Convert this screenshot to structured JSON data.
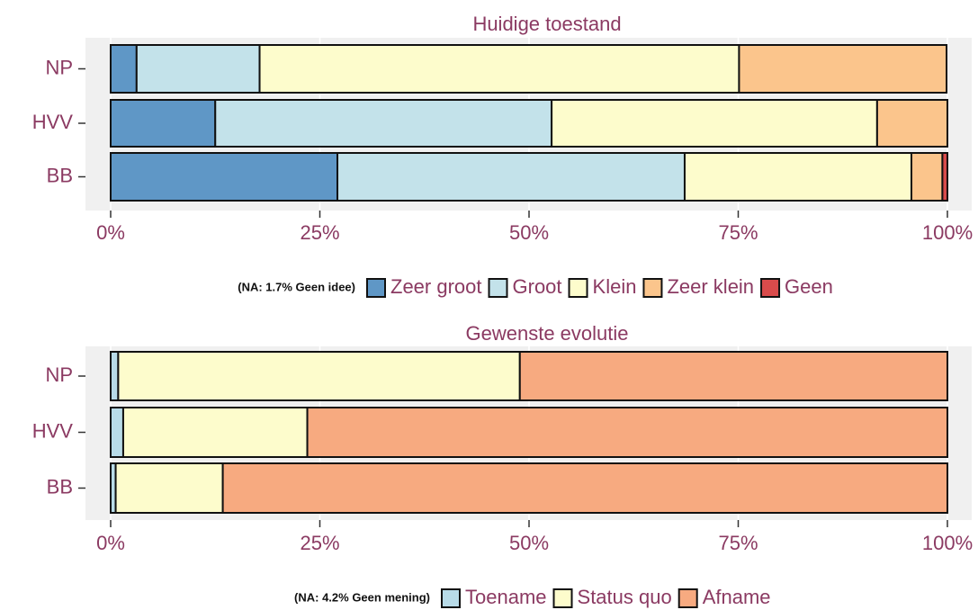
{
  "chart_data": [
    {
      "type": "bar",
      "orientation": "horizontal",
      "stacked": true,
      "title": "Huidige toestand",
      "note": "(NA: 1.7%  Geen idee)",
      "categories": [
        "NP",
        "HVV",
        "BB"
      ],
      "series": [
        {
          "name": "Zeer groot",
          "color": "#5f97c6",
          "values": [
            3.1,
            12.5,
            27.1
          ]
        },
        {
          "name": "Groot",
          "color": "#c3e2ea",
          "values": [
            14.7,
            40.2,
            41.5
          ]
        },
        {
          "name": "Klein",
          "color": "#fdfccc",
          "values": [
            57.3,
            38.9,
            27.1
          ]
        },
        {
          "name": "Zeer klein",
          "color": "#fbc58c",
          "values": [
            24.8,
            8.4,
            3.7
          ]
        },
        {
          "name": "Geen",
          "color": "#d94b4b",
          "values": [
            0,
            0,
            0.6
          ]
        }
      ],
      "xlim": [
        0,
        100
      ],
      "xticks": [
        {
          "value": 0,
          "label": "0%"
        },
        {
          "value": 25,
          "label": "25%"
        },
        {
          "value": 50,
          "label": "50%"
        },
        {
          "value": 75,
          "label": "75%"
        },
        {
          "value": 100,
          "label": "100%"
        }
      ]
    },
    {
      "type": "bar",
      "orientation": "horizontal",
      "stacked": true,
      "title": "Gewenste evolutie",
      "note": "(NA: 4.2%  Geen mening)",
      "categories": [
        "NP",
        "HVV",
        "BB"
      ],
      "series": [
        {
          "name": "Toename",
          "color": "#b8dbe8",
          "values": [
            0.9,
            1.5,
            0.6
          ]
        },
        {
          "name": "Status quo",
          "color": "#fdfccc",
          "values": [
            48.0,
            22.0,
            12.8
          ]
        },
        {
          "name": "Afname",
          "color": "#f7aa80",
          "values": [
            51.1,
            76.5,
            86.6
          ]
        }
      ],
      "xlim": [
        0,
        100
      ],
      "xticks": [
        {
          "value": 0,
          "label": "0%"
        },
        {
          "value": 25,
          "label": "25%"
        },
        {
          "value": 50,
          "label": "50%"
        },
        {
          "value": 75,
          "label": "75%"
        },
        {
          "value": 100,
          "label": "100%"
        }
      ]
    }
  ]
}
